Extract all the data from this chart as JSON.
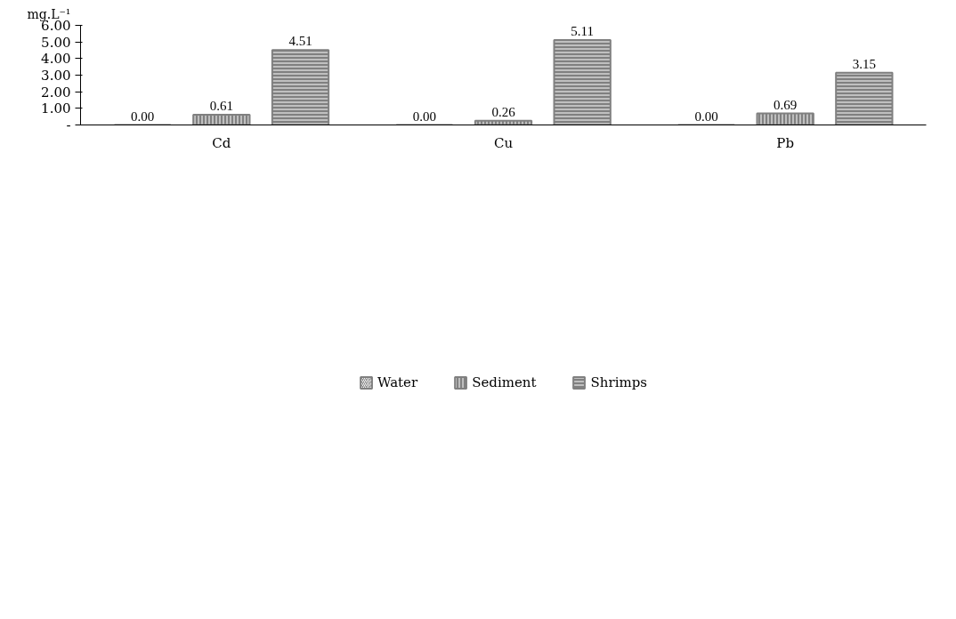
{
  "chart_data": {
    "type": "bar",
    "ylabel": "mg.L⁻¹",
    "categories": [
      "Cd",
      "Cu",
      "Pb"
    ],
    "series": [
      {
        "name": "Water",
        "color": "#808080",
        "values": [
          0.0,
          0.0,
          0.0
        ],
        "value_labels": [
          "0.00",
          "0.00",
          "0.00"
        ]
      },
      {
        "name": "Sediment",
        "color": "#808080",
        "values": [
          0.61,
          0.26,
          0.69
        ],
        "value_labels": [
          "0.61",
          "0.26",
          "0.69"
        ]
      },
      {
        "name": "Shrimps",
        "color": "#808080",
        "values": [
          4.51,
          5.11,
          3.15
        ],
        "value_labels": [
          "4.51",
          "5.11",
          "3.15"
        ]
      }
    ],
    "ylim": [
      0,
      6
    ],
    "yticks": [
      {
        "value": 0,
        "label": "-"
      },
      {
        "value": 1,
        "label": "1.00"
      },
      {
        "value": 2,
        "label": "2.00"
      },
      {
        "value": 3,
        "label": "3.00"
      },
      {
        "value": 4,
        "label": "4.00"
      },
      {
        "value": 5,
        "label": "5.00"
      },
      {
        "value": 6,
        "label": "6.00"
      }
    ],
    "grid": false,
    "legend": "bottom"
  }
}
